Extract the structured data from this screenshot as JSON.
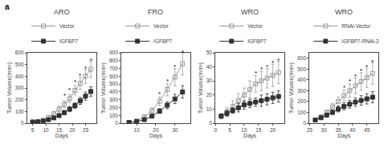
{
  "chart_data": [
    {
      "type": "line",
      "title": "ARO",
      "xlabel": "Days",
      "ylabel": "Tumor Volume(mm³)",
      "x": [
        5,
        7,
        9,
        11,
        13,
        15,
        17,
        19,
        21,
        23,
        25,
        27
      ],
      "series": [
        {
          "name": "Vector",
          "color": "#999999",
          "marker": "square-open",
          "values": [
            10,
            15,
            25,
            50,
            80,
            120,
            160,
            210,
            280,
            340,
            400,
            460
          ],
          "errors": [
            5,
            8,
            10,
            15,
            20,
            25,
            30,
            35,
            40,
            50,
            60,
            70
          ]
        },
        {
          "name": "IGFBP7",
          "color": "#333333",
          "marker": "square",
          "values": [
            10,
            12,
            18,
            30,
            45,
            65,
            90,
            120,
            150,
            190,
            230,
            270
          ],
          "errors": [
            3,
            5,
            8,
            10,
            12,
            15,
            18,
            22,
            25,
            30,
            35,
            40
          ]
        }
      ],
      "xlim": [
        3,
        29
      ],
      "xticks": [
        5,
        10,
        15,
        20,
        25
      ],
      "ylim": [
        0,
        600
      ],
      "yticks": [
        0,
        100,
        200,
        300,
        400,
        500,
        600
      ],
      "grid": false,
      "legend": "upper left",
      "annotations": [
        {
          "text": "a"
        },
        {
          "x": 17,
          "y": 209,
          "text": "*"
        },
        {
          "x": 19,
          "y": 261.25,
          "text": "*"
        },
        {
          "x": 21,
          "y": 327.75,
          "text": "*"
        },
        {
          "x": 23,
          "y": 384.75,
          "text": "*"
        },
        {
          "x": 25,
          "y": 446.5,
          "text": "*"
        },
        {
          "x": 27,
          "y": 513,
          "text": "*"
        }
      ]
    },
    {
      "type": "line",
      "title": "FRO",
      "xlabel": "Days",
      "ylabel": "Tumor Volume(mm³)",
      "x": [
        6,
        10,
        14,
        18,
        22,
        26,
        30,
        34
      ],
      "series": [
        {
          "name": "Vector",
          "color": "#999999",
          "marker": "square-open",
          "values": [
            10,
            30,
            80,
            160,
            280,
            430,
            590,
            760
          ],
          "errors": [
            4,
            10,
            20,
            35,
            55,
            80,
            110,
            140
          ]
        },
        {
          "name": "IGFBP7",
          "color": "#333333",
          "marker": "square",
          "values": [
            10,
            20,
            45,
            90,
            155,
            230,
            310,
            400
          ],
          "errors": [
            3,
            7,
            12,
            20,
            30,
            45,
            60,
            80
          ]
        }
      ],
      "xlim": [
        2,
        38
      ],
      "xticks": [
        10,
        20,
        30
      ],
      "ylim": [
        0,
        900
      ],
      "yticks": [
        0,
        100,
        200,
        300,
        400,
        500,
        600,
        700,
        800,
        900
      ],
      "grid": false,
      "legend": "upper left",
      "annotations": [
        {
          "x": 22,
          "y": 332.5,
          "text": "*"
        },
        {
          "x": 26,
          "y": 503.5,
          "text": "*"
        },
        {
          "x": 30,
          "y": 684,
          "text": "*"
        },
        {
          "x": 34,
          "y": 874,
          "text": "*"
        }
      ]
    },
    {
      "type": "line",
      "title": "WRO",
      "xlabel": "Days",
      "ylabel": "Tumor Volume(mm³)",
      "x": [
        2,
        4,
        6,
        8,
        10,
        12,
        14,
        16,
        18,
        20,
        22
      ],
      "series": [
        {
          "name": "Vector",
          "color": "#999999",
          "marker": "square-open",
          "values": [
            5,
            8,
            12,
            16,
            20,
            24,
            28,
            30,
            32,
            34,
            36
          ],
          "errors": [
            2,
            3,
            4,
            5,
            5,
            6,
            6,
            7,
            7,
            8,
            8
          ]
        },
        {
          "name": "IGFBP7",
          "color": "#333333",
          "marker": "square",
          "values": [
            5,
            7,
            9,
            11,
            13,
            14,
            15,
            16,
            17,
            18,
            19
          ],
          "errors": [
            1,
            2,
            2,
            3,
            3,
            3,
            3,
            4,
            4,
            4,
            4
          ]
        }
      ],
      "xlim": [
        0,
        24
      ],
      "xticks": [
        0,
        5,
        10,
        15,
        20
      ],
      "ylim": [
        0,
        50
      ],
      "yticks": [
        0,
        10,
        20,
        30,
        40,
        50
      ],
      "grid": false,
      "legend": "upper left",
      "annotations": [
        {
          "x": 14,
          "y": 33.25,
          "text": "*"
        },
        {
          "x": 16,
          "y": 36.1,
          "text": "*"
        },
        {
          "x": 18,
          "y": 38,
          "text": "*"
        },
        {
          "x": 20,
          "y": 40.85,
          "text": "*"
        },
        {
          "x": 22,
          "y": 42.75,
          "text": "*"
        }
      ]
    },
    {
      "type": "line",
      "title": "WRO",
      "xlabel": "Days",
      "ylabel": "Tumor Volume(mm³)",
      "x": [
        27,
        29,
        31,
        33,
        35,
        37,
        39,
        41,
        43,
        45,
        47
      ],
      "series": [
        {
          "name": "RNAi-Vector",
          "color": "#999999",
          "marker": "square-open",
          "values": [
            30,
            60,
            100,
            150,
            200,
            255,
            300,
            345,
            385,
            420,
            460
          ],
          "errors": [
            8,
            15,
            22,
            32,
            42,
            52,
            62,
            72,
            82,
            90,
            100
          ]
        },
        {
          "name": "IGFBP7-RNAi-2",
          "color": "#333333",
          "marker": "square",
          "values": [
            30,
            50,
            75,
            100,
            130,
            155,
            175,
            195,
            210,
            225,
            240
          ],
          "errors": [
            6,
            10,
            15,
            20,
            26,
            32,
            36,
            40,
            44,
            48,
            52
          ]
        }
      ],
      "xlim": [
        25,
        49
      ],
      "xticks": [
        25,
        30,
        35,
        40,
        45
      ],
      "ylim": [
        0,
        650
      ],
      "yticks": [
        0,
        100,
        200,
        300,
        400,
        500,
        600
      ],
      "grid": false,
      "legend": "upper left",
      "annotations": [
        {
          "x": 37,
          "y": 304,
          "text": "*"
        },
        {
          "x": 39,
          "y": 361,
          "text": "*"
        },
        {
          "x": 41,
          "y": 408.5,
          "text": "*"
        },
        {
          "x": 43,
          "y": 456,
          "text": "*"
        },
        {
          "x": 45,
          "y": 494,
          "text": "*"
        },
        {
          "x": 47,
          "y": 541.5,
          "text": "*"
        }
      ]
    }
  ]
}
